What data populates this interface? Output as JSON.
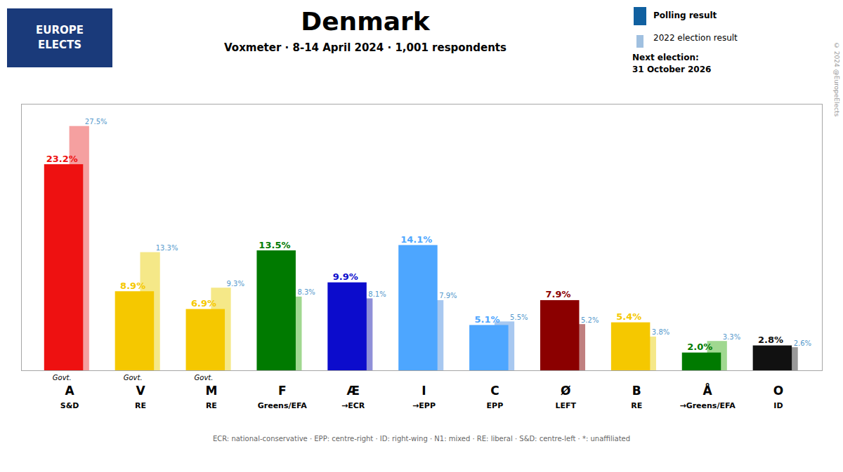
{
  "chart_data": {
    "type": "bar",
    "title": "Denmark",
    "subtitle": "Voxmeter · 8-14 April 2024 · 1,001 respondents",
    "categories": [
      "A",
      "V",
      "M",
      "F",
      "Æ",
      "I",
      "C",
      "Ø",
      "B",
      "Å",
      "O"
    ],
    "category_labels_line2": [
      "S&D",
      "RE",
      "RE",
      "Greens/EFA",
      "→ECR",
      "→EPP",
      "EPP",
      "LEFT",
      "RE",
      "→Greens/EFA",
      "ID"
    ],
    "govt_labels": [
      "Govt.",
      "Govt.",
      "Govt.",
      null,
      null,
      null,
      null,
      null,
      null,
      null,
      null
    ],
    "series": [
      {
        "name": "Polling result",
        "color": "#1060a0",
        "colors": [
          "#ee1111",
          "#f5c800",
          "#f5c800",
          "#007a00",
          "#0c0ccc",
          "#4da6ff",
          "#4da6ff",
          "#8b0000",
          "#f5c800",
          "#007a00",
          "#111111"
        ],
        "values": [
          23.2,
          8.9,
          6.9,
          13.5,
          9.9,
          14.1,
          5.1,
          7.9,
          5.4,
          2.0,
          2.8
        ],
        "value_labels": [
          "23.2%",
          "8.9%",
          "6.9%",
          "13.5%",
          "9.9%",
          "14.1%",
          "5.1%",
          "7.9%",
          "5.4%",
          "2.0%",
          "2.8%"
        ]
      },
      {
        "name": "2022 election result",
        "color": "#a0c0e0",
        "colors": [
          "#f5a0a0",
          "#f5e888",
          "#f5e888",
          "#a0d890",
          "#9090d8",
          "#a8c8f0",
          "#a8c8f0",
          "#c08080",
          "#f5e888",
          "#a0d890",
          "#999999"
        ],
        "values": [
          27.5,
          13.3,
          9.3,
          8.3,
          8.1,
          7.9,
          5.5,
          5.2,
          3.8,
          3.3,
          2.6
        ],
        "value_labels": [
          "27.5%",
          "13.3%",
          "9.3%",
          "8.3%",
          "8.1%",
          "7.9%",
          "5.5%",
          "5.2%",
          "3.8%",
          "3.3%",
          "2.6%"
        ]
      }
    ],
    "ylim": [
      0,
      30
    ],
    "tick_labels": "x",
    "grid": false,
    "legend": "upper right",
    "data_labels": true,
    "next_election": [
      "Next election:",
      "31 October 2026"
    ],
    "logo": [
      "EUROPE",
      "ELECTS"
    ],
    "credit": "© 2024 @EuropeElects",
    "footer": "ECR: national-conservative · EPP: centre-right · ID: right-wing · N1: mixed · RE: liberal · S&D: centre-left · *: unaffiliated"
  }
}
